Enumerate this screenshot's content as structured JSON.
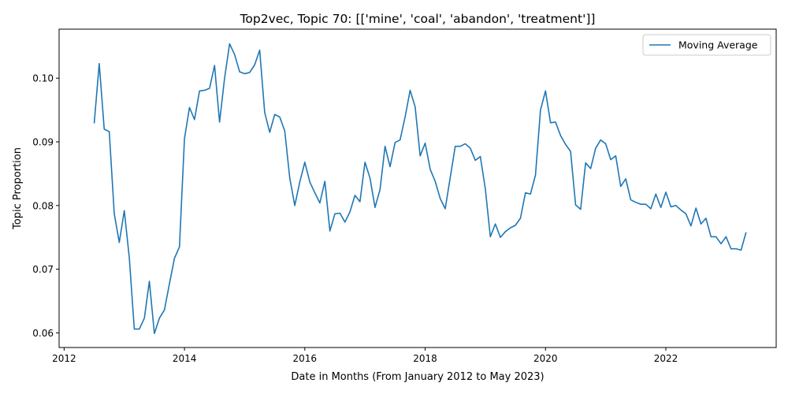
{
  "chart_data": {
    "type": "line",
    "title": "Top2vec, Topic 70: [['mine', 'coal', 'abandon', 'treatment']]",
    "xlabel": "Date in Months (From January 2012 to May 2023)",
    "ylabel": "Topic Proportion",
    "xlim": [
      "2011-12",
      "2023-11"
    ],
    "ylim": [
      0.0577,
      0.1077
    ],
    "x_ticks": [
      "2012",
      "2014",
      "2016",
      "2018",
      "2020",
      "2022"
    ],
    "y_ticks": [
      "0.06",
      "0.07",
      "0.08",
      "0.09",
      "0.10"
    ],
    "legend": {
      "position": "top-right"
    },
    "grid": false,
    "series": [
      {
        "name": "Moving Average",
        "color": "#1f77b4",
        "x": [
          "2012-07",
          "2012-08",
          "2012-09",
          "2012-10",
          "2012-11",
          "2012-12",
          "2013-01",
          "2013-02",
          "2013-03",
          "2013-04",
          "2013-05",
          "2013-06",
          "2013-07",
          "2013-08",
          "2013-09",
          "2013-10",
          "2013-11",
          "2013-12",
          "2014-01",
          "2014-02",
          "2014-03",
          "2014-04",
          "2014-05",
          "2014-06",
          "2014-07",
          "2014-08",
          "2014-09",
          "2014-10",
          "2014-11",
          "2014-12",
          "2015-01",
          "2015-02",
          "2015-03",
          "2015-04",
          "2015-05",
          "2015-06",
          "2015-07",
          "2015-08",
          "2015-09",
          "2015-10",
          "2015-11",
          "2015-12",
          "2016-01",
          "2016-02",
          "2016-03",
          "2016-04",
          "2016-05",
          "2016-06",
          "2016-07",
          "2016-08",
          "2016-09",
          "2016-10",
          "2016-11",
          "2016-12",
          "2017-01",
          "2017-02",
          "2017-03",
          "2017-04",
          "2017-05",
          "2017-06",
          "2017-07",
          "2017-08",
          "2017-09",
          "2017-10",
          "2017-11",
          "2017-12",
          "2018-01",
          "2018-02",
          "2018-03",
          "2018-04",
          "2018-05",
          "2018-06",
          "2018-07",
          "2018-08",
          "2018-09",
          "2018-10",
          "2018-11",
          "2018-12",
          "2019-01",
          "2019-02",
          "2019-03",
          "2019-04",
          "2019-05",
          "2019-06",
          "2019-07",
          "2019-08",
          "2019-09",
          "2019-10",
          "2019-11",
          "2019-12",
          "2020-01",
          "2020-02",
          "2020-03",
          "2020-04",
          "2020-05",
          "2020-06",
          "2020-07",
          "2020-08",
          "2020-09",
          "2020-10",
          "2020-11",
          "2020-12",
          "2021-01",
          "2021-02",
          "2021-03",
          "2021-04",
          "2021-05",
          "2021-06",
          "2021-07",
          "2021-08",
          "2021-09",
          "2021-10",
          "2021-11",
          "2021-12",
          "2022-01",
          "2022-02",
          "2022-03",
          "2022-04",
          "2022-05",
          "2022-06",
          "2022-07",
          "2022-08",
          "2022-09",
          "2022-10",
          "2022-11",
          "2022-12",
          "2023-01",
          "2023-02",
          "2023-03",
          "2023-04",
          "2023-05"
        ],
        "values": [
          0.0929,
          0.1023,
          0.092,
          0.0916,
          0.0787,
          0.0742,
          0.0792,
          0.0718,
          0.0606,
          0.0606,
          0.0623,
          0.0681,
          0.0599,
          0.0623,
          0.0636,
          0.0677,
          0.0717,
          0.0735,
          0.0905,
          0.0954,
          0.0935,
          0.098,
          0.0981,
          0.0984,
          0.102,
          0.0931,
          0.1,
          0.1054,
          0.1037,
          0.101,
          0.1007,
          0.1009,
          0.1021,
          0.1044,
          0.0946,
          0.0915,
          0.0943,
          0.0939,
          0.0917,
          0.0843,
          0.08,
          0.0837,
          0.0868,
          0.0837,
          0.082,
          0.0804,
          0.0838,
          0.076,
          0.0787,
          0.0788,
          0.0774,
          0.079,
          0.0816,
          0.0806,
          0.0868,
          0.0843,
          0.0797,
          0.0825,
          0.0893,
          0.0861,
          0.0899,
          0.0903,
          0.0939,
          0.0981,
          0.0955,
          0.0878,
          0.0898,
          0.0857,
          0.0838,
          0.0811,
          0.0795,
          0.0844,
          0.0893,
          0.0893,
          0.0897,
          0.089,
          0.0871,
          0.0877,
          0.0826,
          0.0751,
          0.0771,
          0.075,
          0.0759,
          0.0765,
          0.0769,
          0.078,
          0.082,
          0.0818,
          0.0848,
          0.095,
          0.098,
          0.093,
          0.0931,
          0.091,
          0.0896,
          0.0885,
          0.0801,
          0.0794,
          0.0867,
          0.0858,
          0.089,
          0.0903,
          0.0897,
          0.0872,
          0.0878,
          0.083,
          0.0842,
          0.0809,
          0.0805,
          0.0802,
          0.0802,
          0.0795,
          0.0818,
          0.0797,
          0.0821,
          0.0798,
          0.08,
          0.0793,
          0.0787,
          0.0768,
          0.0796,
          0.0771,
          0.078,
          0.0751,
          0.0751,
          0.074,
          0.0751,
          0.0732,
          0.0732,
          0.073,
          0.0758
        ]
      }
    ]
  }
}
